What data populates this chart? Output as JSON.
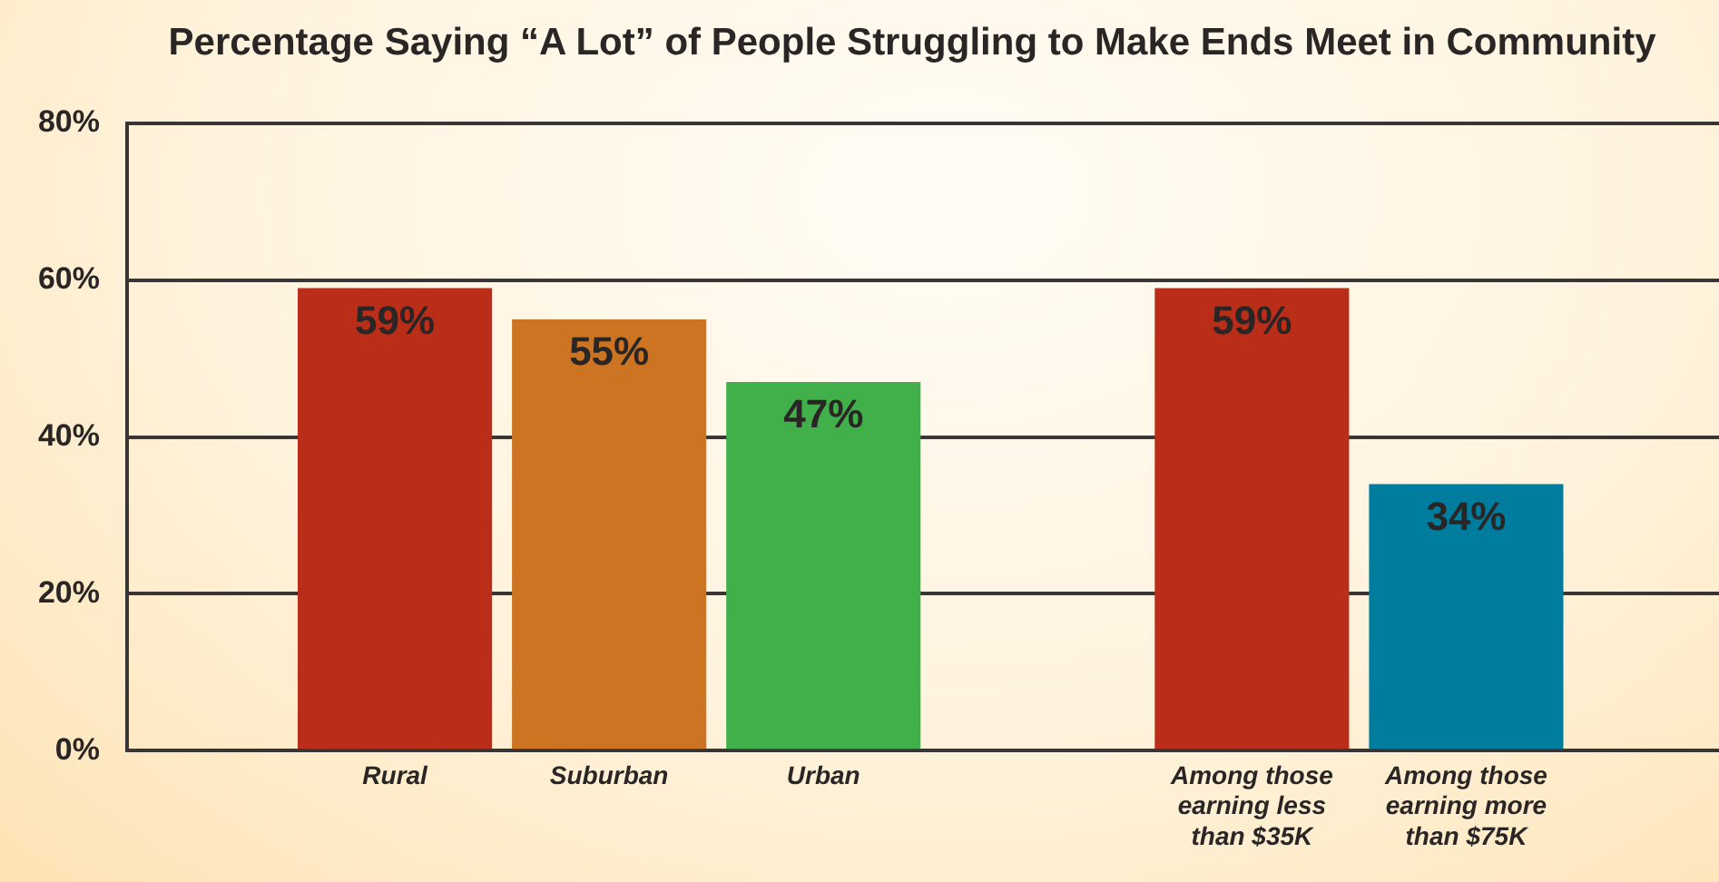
{
  "chart_data": {
    "type": "bar",
    "title": "Percentage Saying “A Lot” of People Struggling to Make Ends Meet in Community",
    "categories": [
      "Rural",
      "Suburban",
      "Urban",
      null,
      "Among those earning less than $35K",
      "Among those earning more than $75K"
    ],
    "values": [
      59,
      55,
      47,
      null,
      59,
      34
    ],
    "colors": [
      "#b92d19",
      "#cc7422",
      "#41b04b",
      null,
      "#b92d19",
      "#007c9e"
    ],
    "value_labels": [
      "59%",
      "55%",
      "47%",
      null,
      "59%",
      "34%"
    ],
    "ylim": [
      0,
      80
    ],
    "yticks": [
      {
        "value": 0,
        "label": "0%"
      },
      {
        "value": 20,
        "label": "20%"
      },
      {
        "value": 40,
        "label": "40%"
      },
      {
        "value": 60,
        "label": "60%"
      },
      {
        "value": 80,
        "label": "80%"
      }
    ],
    "grid": "y"
  }
}
